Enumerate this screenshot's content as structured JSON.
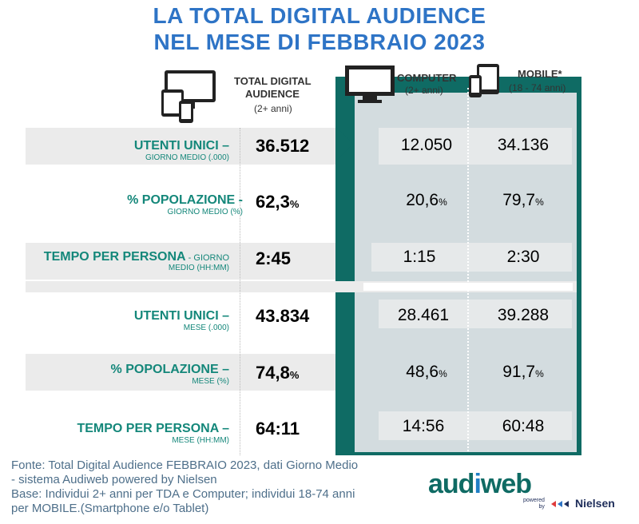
{
  "title": {
    "line1": "LA TOTAL DIGITAL AUDIENCE",
    "line2": "NEL MESE DI FEBBRAIO  2023"
  },
  "headers": {
    "tda": {
      "line1": "TOTAL DIGITAL",
      "line2": "AUDIENCE",
      "sub": "(2+ anni)"
    },
    "computer": {
      "label": "COMPUTER",
      "sub": "(2+ anni)"
    },
    "mobile": {
      "label": "MOBILE*",
      "sub": "(18 - 74 anni)"
    }
  },
  "icons": {
    "tda": "devices-icon",
    "computer": "monitor-icon",
    "mobile": "mobile-devices-icon"
  },
  "rows": [
    {
      "main": "UTENTI UNICI –",
      "sub": "GIORNO MEDIO (.000)",
      "tda": "36.512",
      "tda_pct": "",
      "computer": "12.050",
      "computer_pct": "",
      "mobile": "34.136",
      "mobile_pct": ""
    },
    {
      "main": "% POPOLAZIONE -",
      "sub": "GIORNO MEDIO (%)",
      "tda": "62,3",
      "tda_pct": "%",
      "computer": "20,6",
      "computer_pct": "%",
      "mobile": "79,7",
      "mobile_pct": "%"
    },
    {
      "main": "TEMPO PER PERSONA",
      "main_tail": " - GIORNO",
      "sub": "MEDIO (HH:MM)",
      "tda": "2:45",
      "tda_pct": "",
      "computer": "1:15",
      "computer_pct": "",
      "mobile": "2:30",
      "mobile_pct": ""
    },
    {
      "main": "UTENTI UNICI –",
      "sub": "MESE (.000)",
      "tda": "43.834",
      "tda_pct": "",
      "computer": "28.461",
      "computer_pct": "",
      "mobile": "39.288",
      "mobile_pct": ""
    },
    {
      "main": "% POPOLAZIONE –",
      "sub": "MESE (%)",
      "tda": "74,8",
      "tda_pct": "%",
      "computer": "48,6",
      "computer_pct": "%",
      "mobile": "91,7",
      "mobile_pct": "%"
    },
    {
      "main": "TEMPO PER PERSONA –",
      "sub": "MESE (HH:MM)",
      "tda": "64:11",
      "tda_pct": "",
      "computer": "14:56",
      "computer_pct": "",
      "mobile": "60:48",
      "mobile_pct": ""
    }
  ],
  "footer": {
    "line1": "Fonte: Total Digital Audience FEBBRAIO  2023, dati Giorno Medio",
    "line2": "- sistema Audiweb powered by Nielsen",
    "line3": "Base:  Individui 2+ anni per TDA e Computer; individui 18-74 anni",
    "line4": "per MOBILE.(Smartphone e/o Tablet)"
  },
  "logo": {
    "audi": "aud",
    "i": "i",
    "web": "web",
    "powered": "powered",
    "by": "by",
    "nielsen": "Nielsen"
  },
  "colors": {
    "title": "#2e74c6",
    "label": "#14877a",
    "teal_panel": "#0f6b64",
    "light_panel": "#d3dcdf",
    "footer": "#4e6f8a"
  }
}
